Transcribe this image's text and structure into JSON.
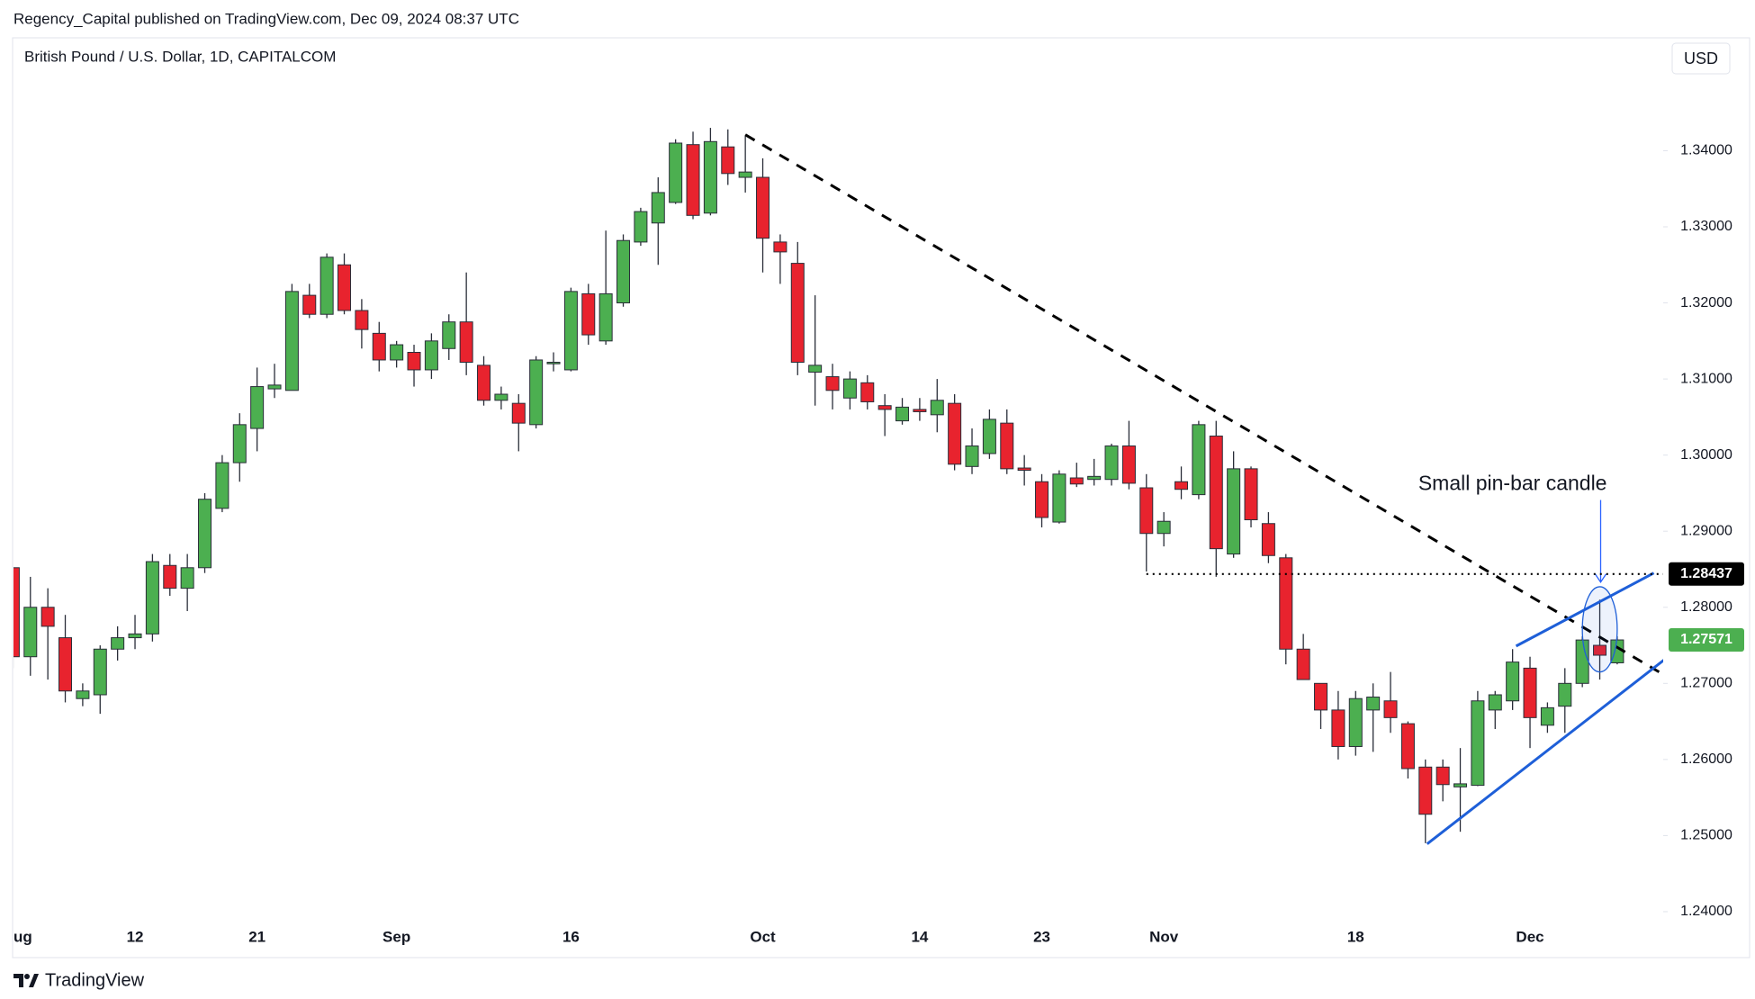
{
  "header": "Regency_Capital published on TradingView.com, Dec 09, 2024 08:37 UTC",
  "footer": "TradingView",
  "chart_data": {
    "type": "candlestick",
    "title": "British Pound / U.S. Dollar, 1D, CAPITALCOM",
    "currency": "USD",
    "up_color": "#4caf50",
    "down_color": "#e8232e",
    "categories": [
      "ug",
      null,
      null,
      null,
      null,
      null,
      null,
      "12",
      null,
      null,
      null,
      null,
      null,
      null,
      "21",
      null,
      null,
      null,
      null,
      null,
      null,
      null,
      "Sep",
      null,
      null,
      null,
      null,
      null,
      null,
      null,
      null,
      null,
      "16",
      null,
      null,
      null,
      null,
      null,
      null,
      null,
      null,
      null,
      null,
      "Oct",
      null,
      null,
      null,
      null,
      null,
      null,
      null,
      null,
      "14",
      null,
      null,
      null,
      null,
      null,
      null,
      "23",
      null,
      null,
      null,
      null,
      null,
      null,
      "Nov",
      null,
      null,
      null,
      null,
      null,
      null,
      null,
      null,
      null,
      null,
      "18",
      null,
      null,
      null,
      null,
      null,
      null,
      null,
      null,
      null,
      "Dec",
      null,
      null,
      null,
      null,
      null
    ],
    "open": [
      1.2852,
      1.2735,
      1.28,
      1.276,
      1.268,
      1.2685,
      1.2745,
      1.276,
      1.2765,
      1.2855,
      1.2825,
      1.2852,
      1.293,
      1.299,
      1.3035,
      1.3087,
      1.3085,
      1.321,
      1.3185,
      1.325,
      1.319,
      1.316,
      1.3125,
      1.3135,
      1.3112,
      1.314,
      1.3175,
      1.3118,
      1.3072,
      1.3068,
      1.304,
      1.312,
      1.3112,
      1.3212,
      1.315,
      1.32,
      1.328,
      1.3305,
      1.3332,
      1.3408,
      1.3318,
      1.3405,
      1.3365,
      1.3365,
      1.328,
      1.3252,
      1.3109,
      1.3103,
      1.3075,
      1.3095,
      1.3065,
      1.3045,
      1.306,
      1.3053,
      1.3068,
      1.2985,
      1.3002,
      1.3042,
      1.2983,
      1.2965,
      1.2912,
      1.297,
      1.2968,
      1.2968,
      1.3012,
      1.2957,
      1.2897,
      1.2965,
      1.2948,
      1.3025,
      1.287,
      1.2982,
      1.291,
      1.2865,
      1.2745,
      1.27,
      1.2665,
      1.2617,
      1.2665,
      1.2677,
      1.2647,
      1.259,
      1.259,
      1.2564,
      1.2566,
      1.2665,
      1.2677,
      1.272,
      1.2645,
      1.267,
      1.27,
      1.275,
      1.2727
    ],
    "high": [
      1.2852,
      1.284,
      1.2825,
      1.279,
      1.27,
      1.275,
      1.2775,
      1.279,
      1.287,
      1.287,
      1.287,
      1.295,
      1.3,
      1.3055,
      1.3115,
      1.312,
      1.3225,
      1.3225,
      1.3265,
      1.3265,
      1.3205,
      1.3175,
      1.315,
      1.3145,
      1.316,
      1.3185,
      1.324,
      1.313,
      1.309,
      1.308,
      1.313,
      1.3135,
      1.322,
      1.3225,
      1.3295,
      1.329,
      1.3325,
      1.3365,
      1.3415,
      1.3425,
      1.343,
      1.3428,
      1.342,
      1.339,
      1.329,
      1.328,
      1.321,
      1.312,
      1.311,
      1.3105,
      1.308,
      1.3075,
      1.3075,
      1.31,
      1.308,
      1.3035,
      1.306,
      1.306,
      1.3,
      1.2975,
      1.298,
      1.299,
      1.2995,
      1.3015,
      1.3045,
      1.2975,
      1.2925,
      1.2985,
      1.3045,
      1.3045,
      1.3005,
      1.2985,
      1.2925,
      1.287,
      1.2765,
      1.27,
      1.269,
      1.269,
      1.27,
      1.2715,
      1.265,
      1.26,
      1.26,
      1.2615,
      1.269,
      1.269,
      1.2745,
      1.2735,
      1.2675,
      1.272,
      1.2762,
      1.281,
      1.2762
    ],
    "low": [
      1.272,
      1.271,
      1.2705,
      1.2675,
      1.267,
      1.266,
      1.273,
      1.2745,
      1.2755,
      1.2815,
      1.2795,
      1.2845,
      1.2925,
      1.2965,
      1.3005,
      1.3075,
      1.3085,
      1.318,
      1.318,
      1.3185,
      1.314,
      1.311,
      1.3115,
      1.309,
      1.31,
      1.3125,
      1.3105,
      1.3065,
      1.306,
      1.3005,
      1.3035,
      1.311,
      1.311,
      1.3145,
      1.3145,
      1.3195,
      1.3275,
      1.325,
      1.333,
      1.331,
      1.3315,
      1.3355,
      1.3345,
      1.324,
      1.3225,
      1.3105,
      1.3065,
      1.306,
      1.306,
      1.306,
      1.3025,
      1.304,
      1.3045,
      1.303,
      1.298,
      1.2975,
      1.2995,
      1.2975,
      1.296,
      1.2905,
      1.291,
      1.2958,
      1.296,
      1.296,
      1.2955,
      1.2847,
      1.288,
      1.2942,
      1.2942,
      1.284,
      1.2865,
      1.2905,
      1.2858,
      1.2725,
      1.2705,
      1.264,
      1.26,
      1.2605,
      1.261,
      1.2635,
      1.2575,
      1.249,
      1.2545,
      1.2505,
      1.2565,
      1.264,
      1.2665,
      1.2615,
      1.2635,
      1.2635,
      1.2695,
      1.2705,
      1.2725
    ],
    "close": [
      1.2735,
      1.28,
      1.2775,
      1.269,
      1.269,
      1.2745,
      1.276,
      1.2765,
      1.286,
      1.2825,
      1.2852,
      1.2942,
      1.299,
      1.304,
      1.309,
      1.3092,
      1.3215,
      1.3185,
      1.326,
      1.319,
      1.3165,
      1.3125,
      1.3145,
      1.3112,
      1.315,
      1.3175,
      1.3122,
      1.3072,
      1.308,
      1.3042,
      1.3125,
      1.3122,
      1.3215,
      1.3158,
      1.3212,
      1.3282,
      1.332,
      1.3345,
      1.341,
      1.3315,
      1.3412,
      1.337,
      1.3372,
      1.3285,
      1.3267,
      1.3122,
      1.3118,
      1.3085,
      1.31,
      1.307,
      1.306,
      1.3063,
      1.3057,
      1.3072,
      1.2988,
      1.3012,
      1.3047,
      1.2982,
      1.298,
      1.2918,
      1.2975,
      1.2962,
      1.2972,
      1.3012,
      1.2963,
      1.2897,
      1.2913,
      1.2955,
      1.304,
      1.2877,
      1.2982,
      1.2915,
      1.2868,
      1.2745,
      1.2705,
      1.2665,
      1.2617,
      1.268,
      1.2682,
      1.2655,
      1.2588,
      1.2528,
      1.2567,
      1.2568,
      1.2677,
      1.2685,
      1.2728,
      1.2655,
      1.2668,
      1.27,
      1.2757,
      1.2737,
      1.27571
    ],
    "ylim": [
      1.2342,
      1.3546
    ],
    "yticks": [
      {
        "value": 1.24,
        "label": "1.24000"
      },
      {
        "value": 1.25,
        "label": "1.25000"
      },
      {
        "value": 1.26,
        "label": "1.26000"
      },
      {
        "value": 1.27,
        "label": "1.27000"
      },
      {
        "value": 1.28,
        "label": "1.28000"
      },
      {
        "value": 1.29,
        "label": "1.29000"
      },
      {
        "value": 1.3,
        "label": "1.30000"
      },
      {
        "value": 1.31,
        "label": "1.31000"
      },
      {
        "value": 1.32,
        "label": "1.32000"
      },
      {
        "value": 1.33,
        "label": "1.33000"
      },
      {
        "value": 1.34,
        "label": "1.34000"
      }
    ],
    "price_labels": [
      {
        "value": 1.28437,
        "label": "1.28437",
        "color": "#000000",
        "dotted_from": 65
      },
      {
        "value": 1.27571,
        "label": "1.27571",
        "color": "#4caf50"
      }
    ],
    "trendlines": [
      {
        "color": "#000000",
        "style": "dashed",
        "points": [
          [
            42,
            1.3421
          ],
          [
            94.4,
            1.2715
          ]
        ]
      },
      {
        "color": "#1e5fd8",
        "style": "solid",
        "points": [
          [
            86.2,
            1.2749
          ],
          [
            94.1,
            1.2845
          ]
        ]
      },
      {
        "color": "#1e5fd8",
        "style": "solid",
        "points": [
          [
            81.1,
            1.2489
          ],
          [
            94.7,
            1.2731
          ]
        ]
      }
    ],
    "highlight": {
      "center": [
        91,
        1.2771
      ],
      "rx": 1,
      "ry": 0.0056,
      "color": "#1e5fd8"
    },
    "annotation": {
      "text": "Small pin-bar candle",
      "at": [
        86,
        1.2961
      ],
      "arrow_from": [
        91.05,
        1.2941
      ],
      "arrow_to": [
        91.05,
        1.2833
      ],
      "color": "#2962ff"
    }
  }
}
